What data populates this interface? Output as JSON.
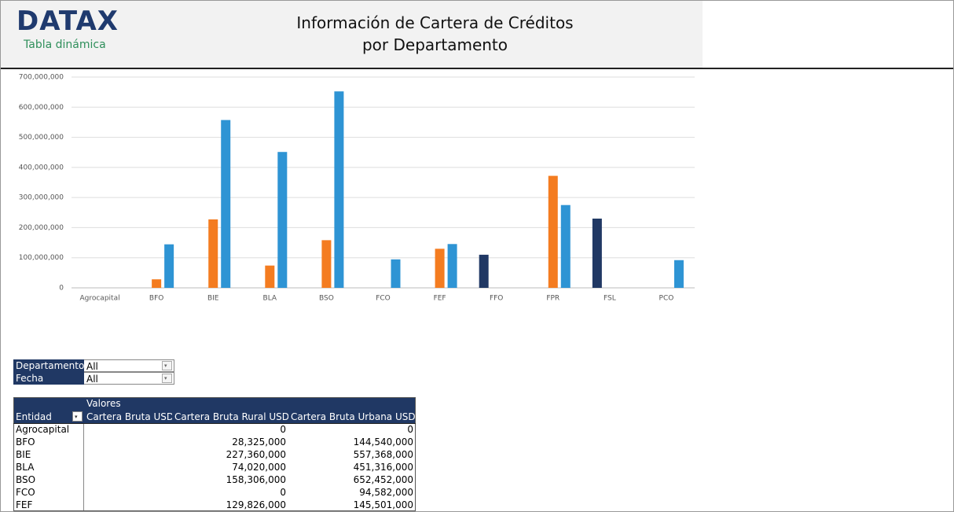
{
  "header": {
    "logo": "DATAX",
    "subtitle": "Tabla dinámica",
    "title_line1": "Información de Cartera de Créditos",
    "title_line2": "por Departamento"
  },
  "chart_data": {
    "type": "bar",
    "categories": [
      "Agrocapital",
      "BFO",
      "BIE",
      "BLA",
      "BSO",
      "FCO",
      "FEF",
      "FFO",
      "FPR",
      "FSL",
      "PCO"
    ],
    "series": [
      {
        "name": "Cartera Bruta USD",
        "color": "#203864",
        "values": [
          null,
          null,
          null,
          null,
          null,
          null,
          null,
          110000000,
          null,
          230000000,
          null
        ]
      },
      {
        "name": "Cartera Bruta Rural USD",
        "color": "#f47c20",
        "values": [
          0,
          28325000,
          227360000,
          74020000,
          158306000,
          0,
          129826000,
          null,
          372000000,
          null,
          null
        ]
      },
      {
        "name": "Cartera Bruta Urbana USD",
        "color": "#2e94d4",
        "values": [
          0,
          144540000,
          557368000,
          451316000,
          652452000,
          94582000,
          145501000,
          null,
          275000000,
          null,
          92000000
        ]
      }
    ],
    "ylim": [
      0,
      700000000
    ],
    "yticks": [
      0,
      {
        "value": 100000000,
        "label": "100,000,000"
      },
      {
        "value": 200000000,
        "label": "200,000,000"
      },
      {
        "value": 300000000,
        "label": "300,000,000"
      },
      {
        "value": 400000000,
        "label": "400,000,000"
      },
      {
        "value": 500000000,
        "label": "500,000,000"
      },
      {
        "value": 600000000,
        "label": "600,000,000"
      },
      {
        "value": 700000000,
        "label": "700,000,000"
      }
    ],
    "grid": true
  },
  "filters": [
    {
      "label": "Departamento",
      "value": "All"
    },
    {
      "label": "Fecha",
      "value": "All"
    }
  ],
  "table": {
    "group_header": "Valores",
    "row_header": "Entidad",
    "rows": [
      {
        "entidad": "Agrocapital",
        "rural": "0",
        "urbana": "0"
      },
      {
        "entidad": "BFO",
        "rural": "28,325,000",
        "urbana": "144,540,000"
      },
      {
        "entidad": "BIE",
        "rural": "227,360,000",
        "urbana": "557,368,000"
      },
      {
        "entidad": "BLA",
        "rural": "74,020,000",
        "urbana": "451,316,000"
      },
      {
        "entidad": "BSO",
        "rural": "158,306,000",
        "urbana": "652,452,000"
      },
      {
        "entidad": "FCO",
        "rural": "0",
        "urbana": "94,582,000"
      },
      {
        "entidad": "FEF",
        "rural": "129,826,000",
        "urbana": "145,501,000"
      }
    ]
  }
}
